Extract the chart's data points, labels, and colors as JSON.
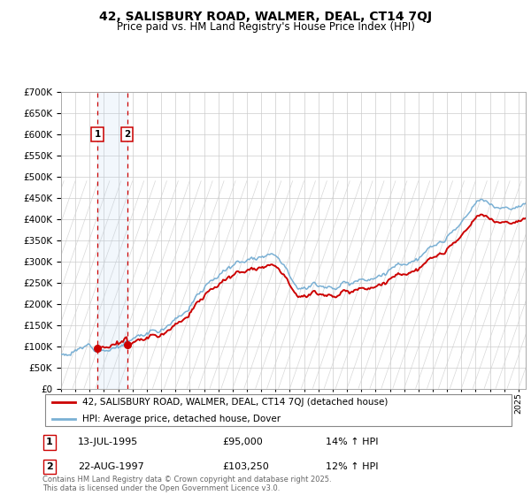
{
  "title": "42, SALISBURY ROAD, WALMER, DEAL, CT14 7QJ",
  "subtitle": "Price paid vs. HM Land Registry's House Price Index (HPI)",
  "sale1_date": "13-JUL-1995",
  "sale1_price": 95000,
  "sale1_hpi": "14% ↑ HPI",
  "sale2_date": "22-AUG-1997",
  "sale2_price": 103250,
  "sale2_hpi": "12% ↑ HPI",
  "legend_label1": "42, SALISBURY ROAD, WALMER, DEAL, CT14 7QJ (detached house)",
  "legend_label2": "HPI: Average price, detached house, Dover",
  "footer": "Contains HM Land Registry data © Crown copyright and database right 2025.\nThis data is licensed under the Open Government Licence v3.0.",
  "price_color": "#cc0000",
  "hpi_color": "#7ab0d4",
  "ylim_min": 0,
  "ylim_max": 700000,
  "xmin": 1993,
  "xmax": 2025.5,
  "sale1_year": 1995.54,
  "sale2_year": 1997.63
}
